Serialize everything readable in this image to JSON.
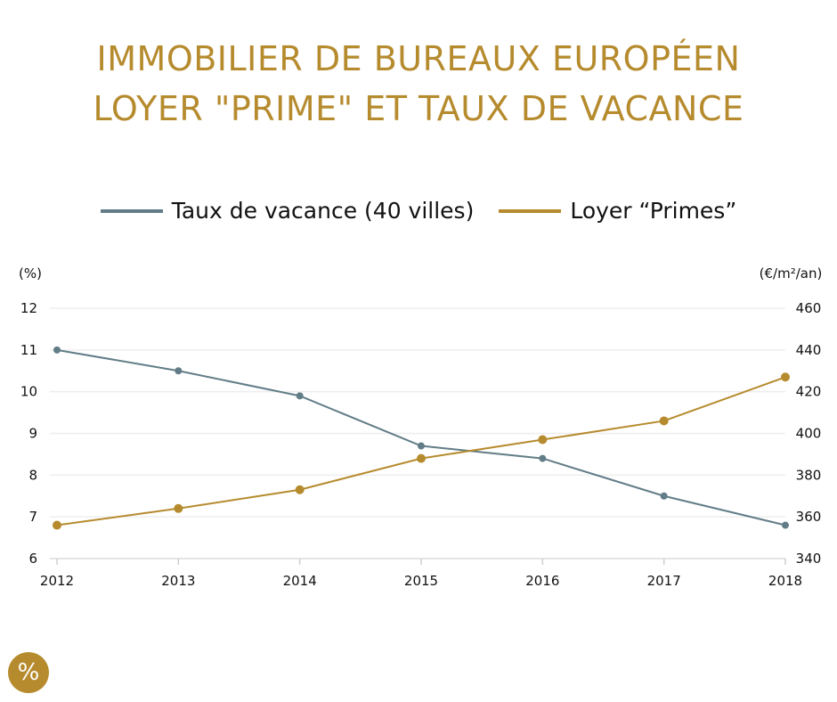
{
  "title_lines": [
    "IMMOBILIER DE BUREAUX EUROPÉEN",
    "LOYER \"PRIME\" ET TAUX DE VACANCE"
  ],
  "badge_symbol": "%",
  "badge_icon": "percent-icon",
  "colors": {
    "accent": "#b68b2e",
    "vacancy": "#627d87",
    "rent": "#b68b2e",
    "grid": "#eeeeee"
  },
  "chart_data": {
    "type": "line",
    "title": "IMMOBILIER DE BUREAUX EUROPÉEN LOYER \"PRIME\" ET TAUX DE VACANCE",
    "x": [
      "2012",
      "2013",
      "2014",
      "2015",
      "2016",
      "2017",
      "2018"
    ],
    "legend_position": "top-center",
    "grid": true,
    "left_axis": {
      "unit": "(%)",
      "ylim": [
        6,
        12
      ],
      "ticks": [
        6,
        7,
        8,
        9,
        10,
        11,
        12
      ]
    },
    "right_axis": {
      "unit": "(€/m²/an)",
      "ylim": [
        340,
        460
      ],
      "ticks": [
        340,
        360,
        380,
        400,
        420,
        440,
        460
      ]
    },
    "series": [
      {
        "name": "Taux de vacance (40 villes)",
        "axis": "left",
        "color": "#627d87",
        "values": [
          11.0,
          10.5,
          9.9,
          8.7,
          8.4,
          7.5,
          6.8
        ]
      },
      {
        "name": "Loyer “Primes”",
        "axis": "right",
        "color": "#b68b2e",
        "values": [
          356,
          364,
          373,
          388,
          397,
          406,
          427
        ]
      }
    ]
  }
}
